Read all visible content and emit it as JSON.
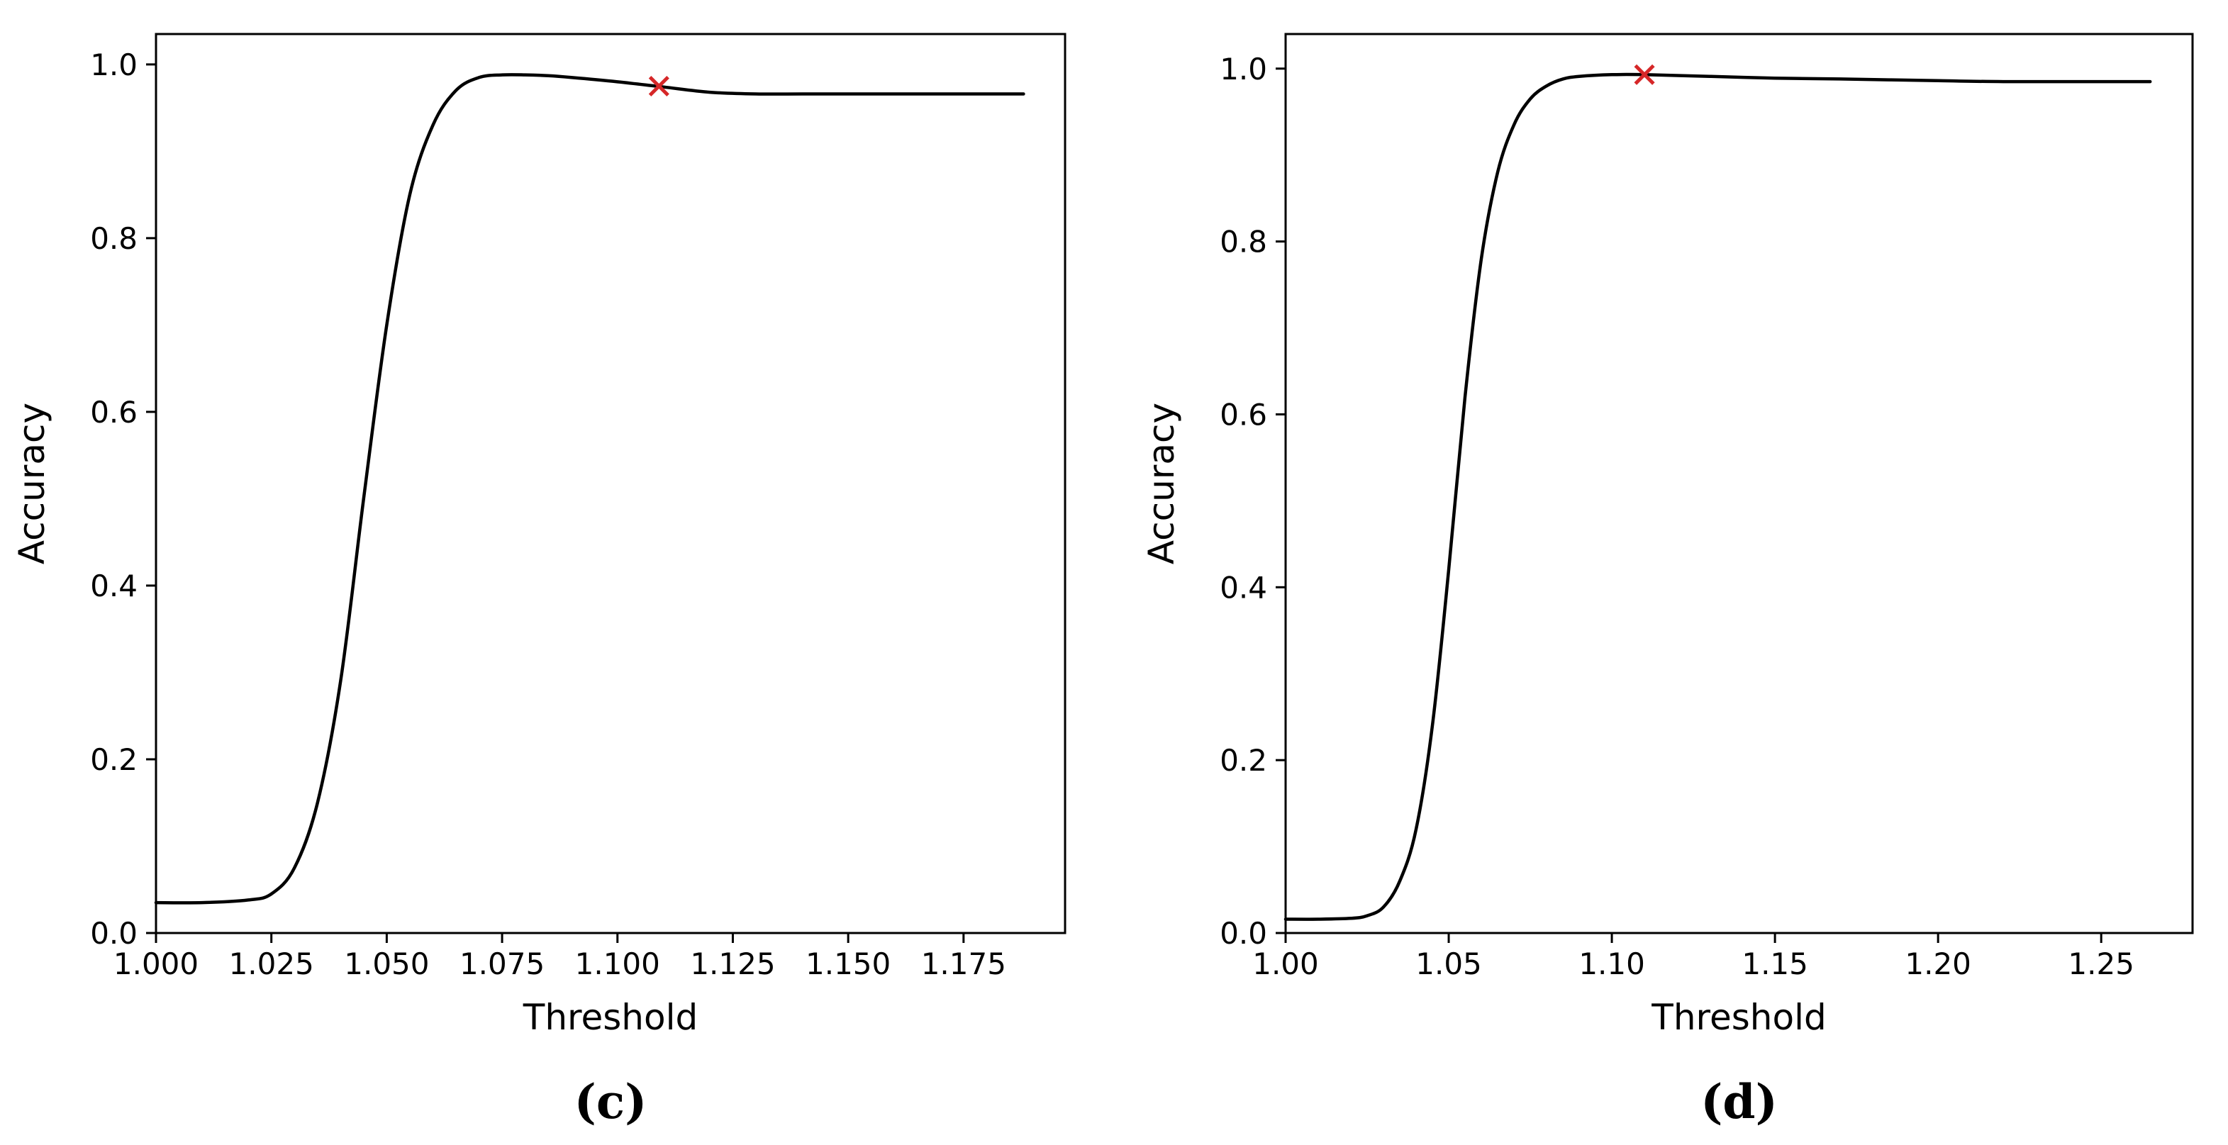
{
  "colors": {
    "line": "#000000",
    "marker": "#d62728"
  },
  "chart_data": [
    {
      "type": "line",
      "caption": "(c)",
      "xlabel": "Threshold",
      "ylabel": "Accuracy",
      "xlim": [
        1.0,
        1.197
      ],
      "ylim": [
        0.0,
        1.035
      ],
      "xticks": [
        1.0,
        1.025,
        1.05,
        1.075,
        1.1,
        1.125,
        1.15,
        1.175
      ],
      "xtick_labels": [
        "1.000",
        "1.025",
        "1.050",
        "1.075",
        "1.100",
        "1.125",
        "1.150",
        "1.175"
      ],
      "yticks": [
        0.0,
        0.2,
        0.4,
        0.6,
        0.8,
        1.0
      ],
      "ytick_labels": [
        "0.0",
        "0.2",
        "0.4",
        "0.6",
        "0.8",
        "1.0"
      ],
      "grid": false,
      "series": [
        {
          "x": [
            1.0,
            1.01,
            1.02,
            1.025,
            1.03,
            1.035,
            1.04,
            1.045,
            1.05,
            1.055,
            1.06,
            1.065,
            1.07,
            1.075,
            1.08,
            1.085,
            1.09,
            1.1,
            1.11,
            1.12,
            1.13,
            1.14,
            1.15,
            1.16,
            1.17,
            1.18,
            1.188
          ],
          "y": [
            0.035,
            0.035,
            0.038,
            0.045,
            0.075,
            0.15,
            0.29,
            0.5,
            0.7,
            0.85,
            0.93,
            0.97,
            0.985,
            0.988,
            0.988,
            0.987,
            0.985,
            0.98,
            0.974,
            0.968,
            0.966,
            0.966,
            0.966,
            0.966,
            0.966,
            0.966,
            0.966
          ]
        }
      ],
      "marker": {
        "x": 1.109,
        "y": 0.975,
        "symbol": "x"
      }
    },
    {
      "type": "line",
      "caption": "(d)",
      "xlabel": "Threshold",
      "ylabel": "Accuracy",
      "xlim": [
        1.0,
        1.278
      ],
      "ylim": [
        0.0,
        1.04
      ],
      "xticks": [
        1.0,
        1.05,
        1.1,
        1.15,
        1.2,
        1.25
      ],
      "xtick_labels": [
        "1.00",
        "1.05",
        "1.10",
        "1.15",
        "1.20",
        "1.25"
      ],
      "yticks": [
        0.0,
        0.2,
        0.4,
        0.6,
        0.8,
        1.0
      ],
      "ytick_labels": [
        "0.0",
        "0.2",
        "0.4",
        "0.6",
        "0.8",
        "1.0"
      ],
      "grid": false,
      "series": [
        {
          "x": [
            1.0,
            1.01,
            1.02,
            1.025,
            1.03,
            1.035,
            1.04,
            1.045,
            1.05,
            1.055,
            1.06,
            1.065,
            1.07,
            1.075,
            1.08,
            1.085,
            1.09,
            1.1,
            1.11,
            1.13,
            1.15,
            1.17,
            1.2,
            1.22,
            1.25,
            1.265
          ],
          "y": [
            0.016,
            0.016,
            0.017,
            0.02,
            0.03,
            0.06,
            0.12,
            0.24,
            0.42,
            0.62,
            0.78,
            0.88,
            0.935,
            0.965,
            0.98,
            0.988,
            0.991,
            0.993,
            0.993,
            0.991,
            0.989,
            0.988,
            0.986,
            0.985,
            0.985,
            0.985
          ]
        }
      ],
      "marker": {
        "x": 1.11,
        "y": 0.993,
        "symbol": "x"
      }
    }
  ]
}
